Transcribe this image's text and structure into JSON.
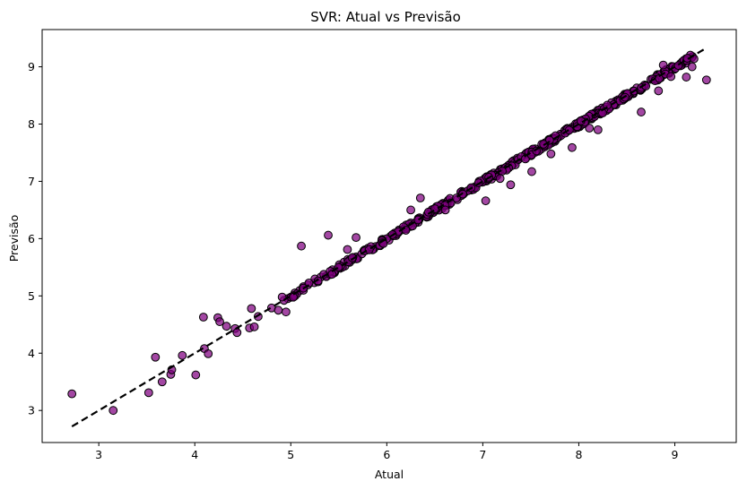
{
  "chart_data": {
    "type": "scatter",
    "title": "SVR: Atual vs Previsão",
    "xlabel": "Atual",
    "ylabel": "Previsão",
    "xlim": [
      2.41,
      9.64
    ],
    "ylim": [
      2.44,
      9.65
    ],
    "xticks": [
      "3",
      "4",
      "5",
      "6",
      "7",
      "8",
      "9"
    ],
    "yticks": [
      "3",
      "4",
      "5",
      "6",
      "7",
      "8",
      "9"
    ],
    "grid": false,
    "point_color": "#800080",
    "reference_line": {
      "x": [
        2.72,
        9.33
      ],
      "y": [
        2.72,
        9.33
      ],
      "style": "dashed",
      "color": "#000000"
    },
    "outliers": [
      [
        2.72,
        3.29
      ],
      [
        3.15,
        3.0
      ],
      [
        3.52,
        3.31
      ],
      [
        3.59,
        3.93
      ],
      [
        3.66,
        3.5
      ],
      [
        3.75,
        3.63
      ],
      [
        3.76,
        3.71
      ],
      [
        3.87,
        3.96
      ],
      [
        4.01,
        3.62
      ],
      [
        4.09,
        4.63
      ],
      [
        4.1,
        4.08
      ],
      [
        4.14,
        3.99
      ],
      [
        4.24,
        4.62
      ],
      [
        4.26,
        4.55
      ],
      [
        4.33,
        4.47
      ],
      [
        4.42,
        4.43
      ],
      [
        4.44,
        4.36
      ],
      [
        4.57,
        4.44
      ],
      [
        4.59,
        4.78
      ],
      [
        4.62,
        4.46
      ],
      [
        4.66,
        4.64
      ],
      [
        4.8,
        4.79
      ],
      [
        4.87,
        4.75
      ],
      [
        4.91,
        4.98
      ],
      [
        4.95,
        4.72
      ],
      [
        5.11,
        5.87
      ],
      [
        5.39,
        6.06
      ],
      [
        5.59,
        5.81
      ],
      [
        5.68,
        6.02
      ],
      [
        6.25,
        6.5
      ],
      [
        6.35,
        6.71
      ],
      [
        6.61,
        6.5
      ],
      [
        7.03,
        6.66
      ],
      [
        7.18,
        7.05
      ],
      [
        7.29,
        6.94
      ],
      [
        7.51,
        7.17
      ],
      [
        7.71,
        7.48
      ],
      [
        7.93,
        7.59
      ],
      [
        8.11,
        7.93
      ],
      [
        8.2,
        7.9
      ],
      [
        8.65,
        8.21
      ],
      [
        8.83,
        8.58
      ],
      [
        8.88,
        9.03
      ],
      [
        8.96,
        8.83
      ],
      [
        9.12,
        8.82
      ],
      [
        9.13,
        9.15
      ],
      [
        9.18,
        9.0
      ],
      [
        9.2,
        9.14
      ],
      [
        9.33,
        8.77
      ]
    ]
  }
}
